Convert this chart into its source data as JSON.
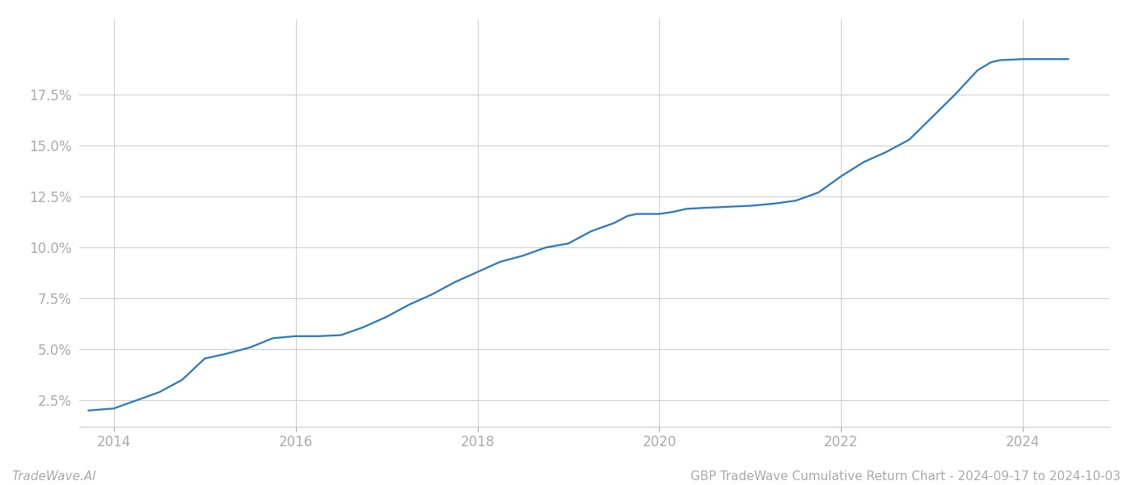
{
  "title": "GBP TradeWave Cumulative Return Chart - 2024-09-17 to 2024-10-03",
  "watermark": "TradeWave.AI",
  "line_color": "#2878bd",
  "background_color": "#ffffff",
  "grid_color": "#cccccc",
  "x_years": [
    2013.72,
    2014.0,
    2014.5,
    2014.75,
    2015.0,
    2015.25,
    2015.5,
    2015.75,
    2016.0,
    2016.25,
    2016.5,
    2016.75,
    2017.0,
    2017.25,
    2017.5,
    2017.75,
    2018.0,
    2018.25,
    2018.5,
    2018.75,
    2019.0,
    2019.25,
    2019.5,
    2019.65,
    2019.75,
    2020.0,
    2020.15,
    2020.3,
    2020.5,
    2020.75,
    2021.0,
    2021.25,
    2021.5,
    2021.75,
    2022.0,
    2022.25,
    2022.5,
    2022.75,
    2023.0,
    2023.25,
    2023.5,
    2023.65,
    2023.75,
    2024.0,
    2024.5
  ],
  "y_values": [
    2.0,
    2.1,
    2.9,
    3.5,
    4.55,
    4.8,
    5.1,
    5.55,
    5.65,
    5.65,
    5.7,
    6.1,
    6.6,
    7.2,
    7.7,
    8.3,
    8.8,
    9.3,
    9.6,
    10.0,
    10.2,
    10.8,
    11.2,
    11.55,
    11.65,
    11.65,
    11.75,
    11.9,
    11.95,
    12.0,
    12.05,
    12.15,
    12.3,
    12.7,
    13.5,
    14.2,
    14.7,
    15.3,
    16.4,
    17.5,
    18.7,
    19.1,
    19.2,
    19.25,
    19.25
  ],
  "xlim": [
    2013.62,
    2024.95
  ],
  "ylim": [
    1.2,
    21.2
  ],
  "yticks": [
    2.5,
    5.0,
    7.5,
    10.0,
    12.5,
    15.0,
    17.5
  ],
  "xticks": [
    2014,
    2016,
    2018,
    2020,
    2022,
    2024
  ],
  "tick_color": "#aaaaaa",
  "label_fontsize": 12,
  "watermark_fontsize": 11,
  "title_fontsize": 11,
  "line_width": 1.6
}
